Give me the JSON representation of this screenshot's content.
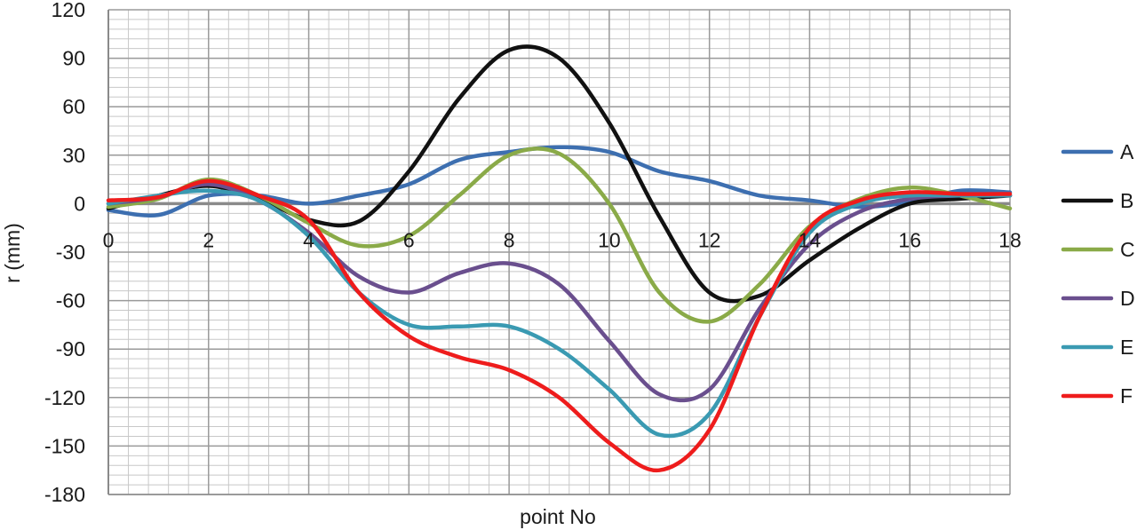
{
  "chart_data": {
    "type": "line",
    "title": "",
    "xlabel": "point No",
    "ylabel": "r (mm)",
    "xlim": [
      0,
      18
    ],
    "ylim": [
      -180,
      120
    ],
    "xticks": [
      0,
      2,
      4,
      6,
      8,
      10,
      12,
      14,
      16,
      18
    ],
    "yticks": [
      120,
      90,
      60,
      30,
      0,
      -30,
      -60,
      -90,
      -120,
      -150,
      -180
    ],
    "grid": true,
    "legend": "right",
    "x": [
      0,
      1,
      2,
      3,
      4,
      5,
      6,
      7,
      8,
      9,
      10,
      11,
      12,
      13,
      14,
      15,
      16,
      17,
      18
    ],
    "series": [
      {
        "name": "A",
        "color": "#3d6fb0",
        "values": [
          -4,
          -7,
          5,
          5,
          0,
          5,
          12,
          27,
          32,
          35,
          32,
          20,
          14,
          5,
          2,
          -2,
          1,
          8,
          7
        ]
      },
      {
        "name": "B",
        "color": "#111111",
        "values": [
          -3,
          5,
          11,
          3,
          -10,
          -11,
          20,
          65,
          95,
          90,
          50,
          -8,
          -55,
          -57,
          -35,
          -15,
          0,
          3,
          5
        ]
      },
      {
        "name": "C",
        "color": "#8aaa48",
        "values": [
          -2,
          3,
          15,
          5,
          -12,
          -26,
          -20,
          5,
          30,
          31,
          0,
          -55,
          -73,
          -50,
          -14,
          3,
          10,
          5,
          -3
        ]
      },
      {
        "name": "D",
        "color": "#6a4f8e",
        "values": [
          0,
          4,
          12,
          2,
          -18,
          -45,
          -55,
          -43,
          -37,
          -50,
          -85,
          -118,
          -115,
          -65,
          -25,
          -5,
          3,
          5,
          5
        ]
      },
      {
        "name": "E",
        "color": "#3a9ab2",
        "values": [
          0,
          5,
          8,
          2,
          -20,
          -55,
          -75,
          -76,
          -76,
          -90,
          -115,
          -143,
          -130,
          -70,
          -18,
          0,
          5,
          5,
          5
        ]
      },
      {
        "name": "F",
        "color": "#ee1c1c",
        "values": [
          2,
          4,
          14,
          5,
          -10,
          -55,
          -82,
          -95,
          -103,
          -120,
          -148,
          -165,
          -140,
          -70,
          -15,
          2,
          7,
          6,
          6
        ]
      }
    ]
  }
}
